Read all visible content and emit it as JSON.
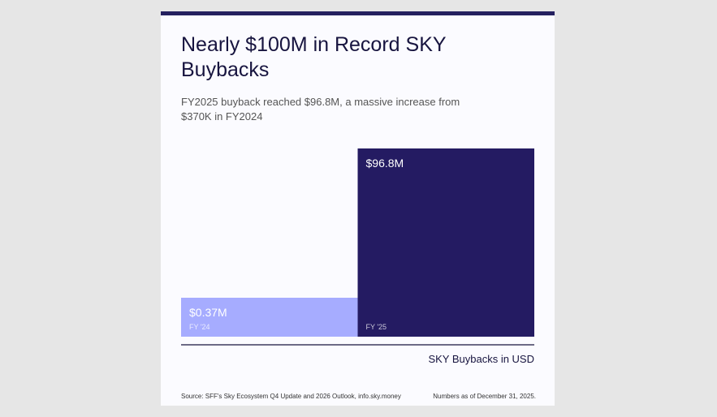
{
  "title": "Nearly $100M in Record SKY Buybacks",
  "subtitle": "FY2025 buyback reached $96.8M, a massive increase from $370K in FY2024",
  "legend": "SKY Buybacks in USD",
  "source": "Source: SFF's Sky Ecosystem Q4 Update and 2026 Outlook, info.sky.money",
  "as_of": "Numbers as of December 31, 2025.",
  "colors": {
    "fy24": "#a6acff",
    "fy25": "#241b62",
    "accent": "#24205f"
  },
  "chart_data": {
    "type": "bar",
    "title": "Nearly $100M in Record SKY Buybacks",
    "categories": [
      "FY '24",
      "FY '25"
    ],
    "values": [
      0.37,
      96.8
    ],
    "value_labels": [
      "$0.37M",
      "$96.8M"
    ],
    "unit": "USD millions",
    "xlabel": "",
    "ylabel": "SKY Buybacks in USD",
    "ylim": [
      0,
      96.8
    ],
    "grid": false,
    "legend": "bottom-right"
  }
}
